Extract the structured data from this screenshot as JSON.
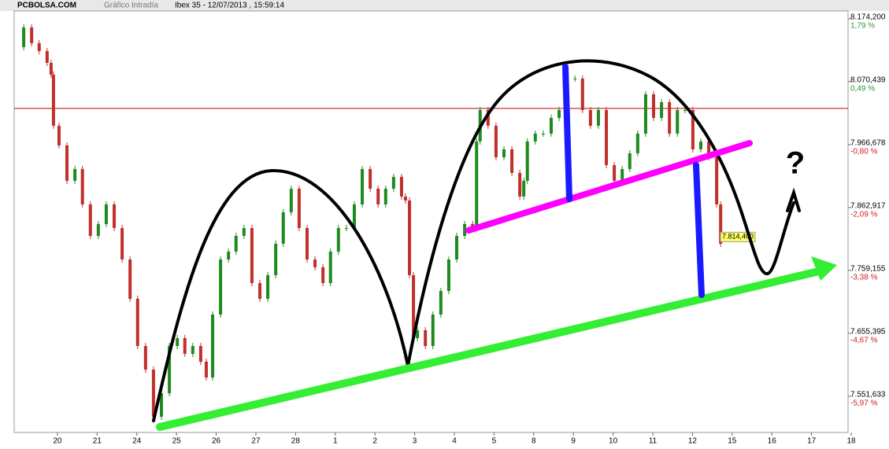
{
  "header": {
    "site": "PCBOLSA.COM",
    "kind": "Gráfico Intradía",
    "instrument": "Ibex 35 - 12/07/2013 , 15:59:14"
  },
  "chart_data": {
    "type": "candlestick",
    "categories": [
      "20",
      "21",
      "24",
      "25",
      "26",
      "27",
      "28",
      "1",
      "2",
      "3",
      "4",
      "5",
      "8",
      "9",
      "10",
      "11",
      "12",
      "15",
      "16",
      "17",
      "18"
    ],
    "xlim": [
      -1.09,
      19.92
    ],
    "ylim": [
      7492,
      8187
    ],
    "yticks": [
      {
        "value": 8174.2,
        "label": "8.174,200",
        "percent": "1,79 %"
      },
      {
        "value": 8070.439,
        "label": "8.070,439",
        "percent": "0,49 %"
      },
      {
        "value": 7966.678,
        "label": "7.966,678",
        "percent": "-0,80 %"
      },
      {
        "value": 7862.917,
        "label": "7.862,917",
        "percent": "-2,09 %"
      },
      {
        "value": 7759.155,
        "label": "7.759,155",
        "percent": "-3,38 %"
      },
      {
        "value": 7655.395,
        "label": "7.655,395",
        "percent": "-4,67 %"
      },
      {
        "value": 7551.633,
        "label": "7.551,633",
        "percent": "-5,97 %"
      }
    ],
    "reference_line": {
      "value": 8026.3,
      "color": "#cc0000"
    },
    "last_price": {
      "value": 7814.4,
      "label": "7.814,400"
    },
    "up_color": "#1f8a1f",
    "down_color": "#c0302b",
    "annotation": "?",
    "x": [
      -1.05,
      -0.85,
      -0.65,
      -0.46,
      -0.26,
      -0.16,
      -0.1,
      0.04,
      0.24,
      0.44,
      0.63,
      0.83,
      1.03,
      1.23,
      1.43,
      1.63,
      1.83,
      2.02,
      2.22,
      2.42,
      2.62,
      2.82,
      3.02,
      3.21,
      3.41,
      3.61,
      3.75,
      3.91,
      4.11,
      4.31,
      4.5,
      4.7,
      4.9,
      5.1,
      5.3,
      5.5,
      5.69,
      5.89,
      6.09,
      6.29,
      6.49,
      6.69,
      6.88,
      7.08,
      7.28,
      7.48,
      7.68,
      7.88,
      8.08,
      8.27,
      8.47,
      8.67,
      8.77,
      8.87,
      8.97,
      9.07,
      9.27,
      9.46,
      9.66,
      9.86,
      10.06,
      10.26,
      10.46,
      10.56,
      10.65,
      10.85,
      11.05,
      11.25,
      11.45,
      11.65,
      11.75,
      11.84,
      12.04,
      12.24,
      12.44,
      12.64,
      12.84,
      13.04,
      13.23,
      13.43,
      13.63,
      13.83,
      14.03,
      14.23,
      14.42,
      14.62,
      14.82,
      15.02,
      15.22,
      15.42,
      15.62,
      15.81,
      16.01,
      16.21,
      16.41,
      16.61,
      16.71
    ],
    "values": [
      8127.5,
      8159.9,
      8134.0,
      8121.0,
      8101.6,
      8082.1,
      7997.8,
      7965.4,
      7907.0,
      7926.5,
      7868.1,
      7816.2,
      7835.7,
      7868.1,
      7829.2,
      7777.3,
      7712.5,
      7634.6,
      7595.7,
      7518.0,
      7556.8,
      7634.6,
      7647.6,
      7621.7,
      7634.6,
      7608.7,
      7582.8,
      7686.5,
      7777.3,
      7790.3,
      7816.2,
      7829.2,
      7738.4,
      7712.5,
      7751.4,
      7803.3,
      7855.1,
      7894.0,
      7829.2,
      7777.3,
      7764.4,
      7738.4,
      7790.3,
      7829.2,
      7829.2,
      7868.1,
      7926.5,
      7894.0,
      7868.1,
      7894.0,
      7913.5,
      7881.1,
      7874.6,
      7751.4,
      7647.6,
      7660.6,
      7634.6,
      7686.5,
      7725.4,
      7777.3,
      7816.2,
      7835.7,
      7829.2,
      7971.9,
      8023.7,
      7997.8,
      7945.9,
      7958.9,
      7920.0,
      7881.1,
      7907.0,
      7971.9,
      7984.8,
      7984.8,
      8010.8,
      8023.7,
      8075.6,
      8075.6,
      8023.7,
      7997.8,
      8023.7,
      7932.9,
      7907.0,
      7926.5,
      7952.4,
      7984.8,
      8049.7,
      8010.8,
      8036.7,
      7984.8,
      8023.7,
      8023.7,
      7958.9,
      7971.9,
      7945.9,
      7868.1,
      7803.3
    ]
  }
}
